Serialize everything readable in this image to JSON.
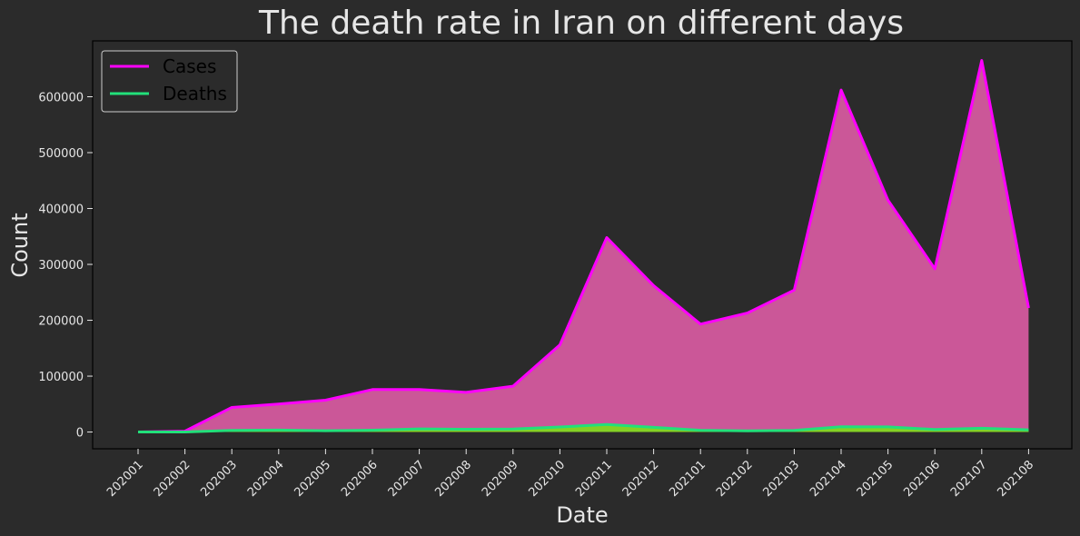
{
  "chart_data": {
    "type": "area",
    "title": "The death rate in Iran on different days",
    "xlabel": "Date",
    "ylabel": "Count",
    "categories": [
      "202001",
      "202002",
      "202003",
      "202004",
      "202005",
      "202006",
      "202007",
      "202008",
      "202009",
      "202010",
      "202011",
      "202012",
      "202101",
      "202102",
      "202103",
      "202104",
      "202105",
      "202106",
      "202107",
      "202108"
    ],
    "ylim": [
      -30000,
      700000
    ],
    "yticks": [
      0,
      100000,
      200000,
      300000,
      400000,
      500000,
      600000
    ],
    "grid": false,
    "legend_position": "top-left",
    "series": [
      {
        "name": "Cases",
        "line_color": "#ff00ff",
        "fill_color": "#d45a9e",
        "values": [
          0,
          1500,
          44000,
          50000,
          57000,
          76000,
          76000,
          71000,
          82000,
          156000,
          348000,
          262000,
          193000,
          213000,
          254000,
          612000,
          415000,
          292000,
          665000,
          222000
        ]
      },
      {
        "name": "Deaths",
        "line_color": "#22e07a",
        "fill_color": "#7fd81f",
        "values": [
          0,
          80,
          3000,
          3600,
          2400,
          3300,
          5500,
          5000,
          5300,
          9000,
          13500,
          8500,
          3100,
          2200,
          3000,
          9500,
          9300,
          4500,
          6700,
          4000
        ]
      }
    ]
  }
}
